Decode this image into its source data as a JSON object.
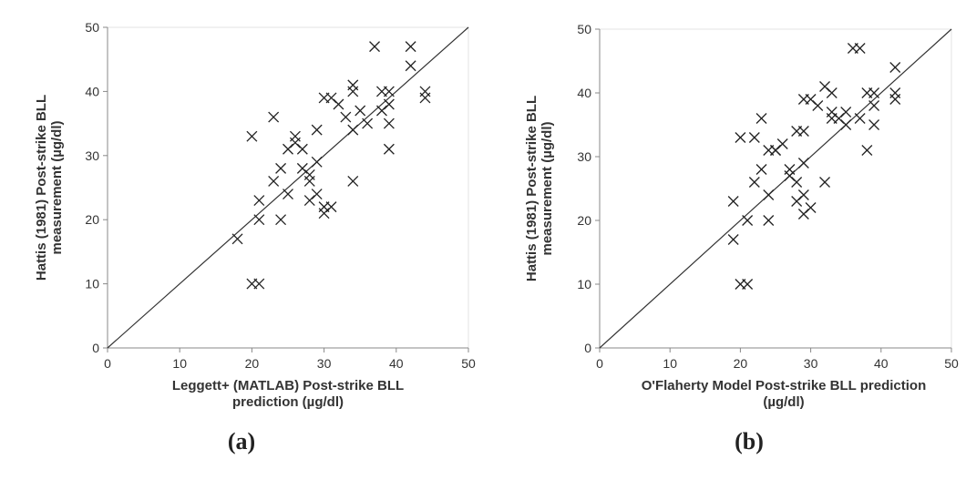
{
  "chart_data": [
    {
      "id": "a",
      "type": "scatter",
      "panel_label": "(a)",
      "xlabel": [
        "Leggett+ (MATLAB)  Post-strike BLL",
        "prediction (µg/dl)"
      ],
      "ylabel": [
        "Hattis (1981) Post-strike BLL",
        "measurement (µg/dl)"
      ],
      "xlim": [
        0,
        50
      ],
      "ylim": [
        0,
        50
      ],
      "xticks": [
        0,
        10,
        20,
        30,
        40,
        50
      ],
      "yticks": [
        0,
        10,
        20,
        30,
        40,
        50
      ],
      "grid": false,
      "reference_line": "y = x",
      "marker": "x",
      "points": [
        [
          18,
          17
        ],
        [
          20,
          10
        ],
        [
          21,
          10
        ],
        [
          20,
          33
        ],
        [
          21,
          23
        ],
        [
          21,
          20
        ],
        [
          23,
          26
        ],
        [
          23,
          36
        ],
        [
          24,
          28
        ],
        [
          24,
          20
        ],
        [
          25,
          31
        ],
        [
          25,
          24
        ],
        [
          26,
          33
        ],
        [
          26,
          32
        ],
        [
          27,
          31
        ],
        [
          27,
          28
        ],
        [
          28,
          27
        ],
        [
          28,
          26
        ],
        [
          28,
          23
        ],
        [
          29,
          24
        ],
        [
          29,
          34
        ],
        [
          29,
          29
        ],
        [
          30,
          39
        ],
        [
          30,
          22
        ],
        [
          30,
          21
        ],
        [
          31,
          39
        ],
        [
          31,
          22
        ],
        [
          32,
          38
        ],
        [
          33,
          36
        ],
        [
          34,
          41
        ],
        [
          34,
          40
        ],
        [
          34,
          34
        ],
        [
          34,
          26
        ],
        [
          35,
          37
        ],
        [
          36,
          35
        ],
        [
          37,
          47
        ],
        [
          38,
          40
        ],
        [
          38,
          37
        ],
        [
          39,
          40
        ],
        [
          39,
          38
        ],
        [
          39,
          35
        ],
        [
          39,
          31
        ],
        [
          42,
          47
        ],
        [
          42,
          44
        ],
        [
          44,
          40
        ],
        [
          44,
          39
        ]
      ]
    },
    {
      "id": "b",
      "type": "scatter",
      "panel_label": "(b)",
      "xlabel": [
        "O'Flaherty Model Post-strike BLL prediction",
        "(µg/dl)"
      ],
      "ylabel": [
        "Hattis (1981) Post-strike BLL",
        "measurement (µg/dl)"
      ],
      "xlim": [
        0,
        50
      ],
      "ylim": [
        0,
        50
      ],
      "xticks": [
        0,
        10,
        20,
        30,
        40,
        50
      ],
      "yticks": [
        0,
        10,
        20,
        30,
        40,
        50
      ],
      "grid": false,
      "reference_line": "y = x",
      "marker": "x",
      "points": [
        [
          19,
          17
        ],
        [
          19,
          23
        ],
        [
          20,
          33
        ],
        [
          20,
          10
        ],
        [
          21,
          10
        ],
        [
          21,
          20
        ],
        [
          22,
          33
        ],
        [
          22,
          26
        ],
        [
          23,
          36
        ],
        [
          23,
          28
        ],
        [
          24,
          31
        ],
        [
          24,
          24
        ],
        [
          24,
          20
        ],
        [
          25,
          31
        ],
        [
          25,
          31
        ],
        [
          26,
          32
        ],
        [
          27,
          27
        ],
        [
          27,
          28
        ],
        [
          28,
          34
        ],
        [
          28,
          23
        ],
        [
          28,
          26
        ],
        [
          29,
          34
        ],
        [
          29,
          29
        ],
        [
          29,
          24
        ],
        [
          29,
          21
        ],
        [
          29,
          39
        ],
        [
          30,
          22
        ],
        [
          30,
          39
        ],
        [
          31,
          38
        ],
        [
          32,
          41
        ],
        [
          32,
          26
        ],
        [
          33,
          37
        ],
        [
          33,
          36
        ],
        [
          33,
          40
        ],
        [
          34,
          36
        ],
        [
          35,
          35
        ],
        [
          35,
          37
        ],
        [
          36,
          47
        ],
        [
          37,
          47
        ],
        [
          37,
          36
        ],
        [
          38,
          40
        ],
        [
          38,
          31
        ],
        [
          39,
          40
        ],
        [
          39,
          38
        ],
        [
          39,
          35
        ],
        [
          42,
          44
        ],
        [
          42,
          40
        ],
        [
          42,
          39
        ]
      ]
    }
  ]
}
